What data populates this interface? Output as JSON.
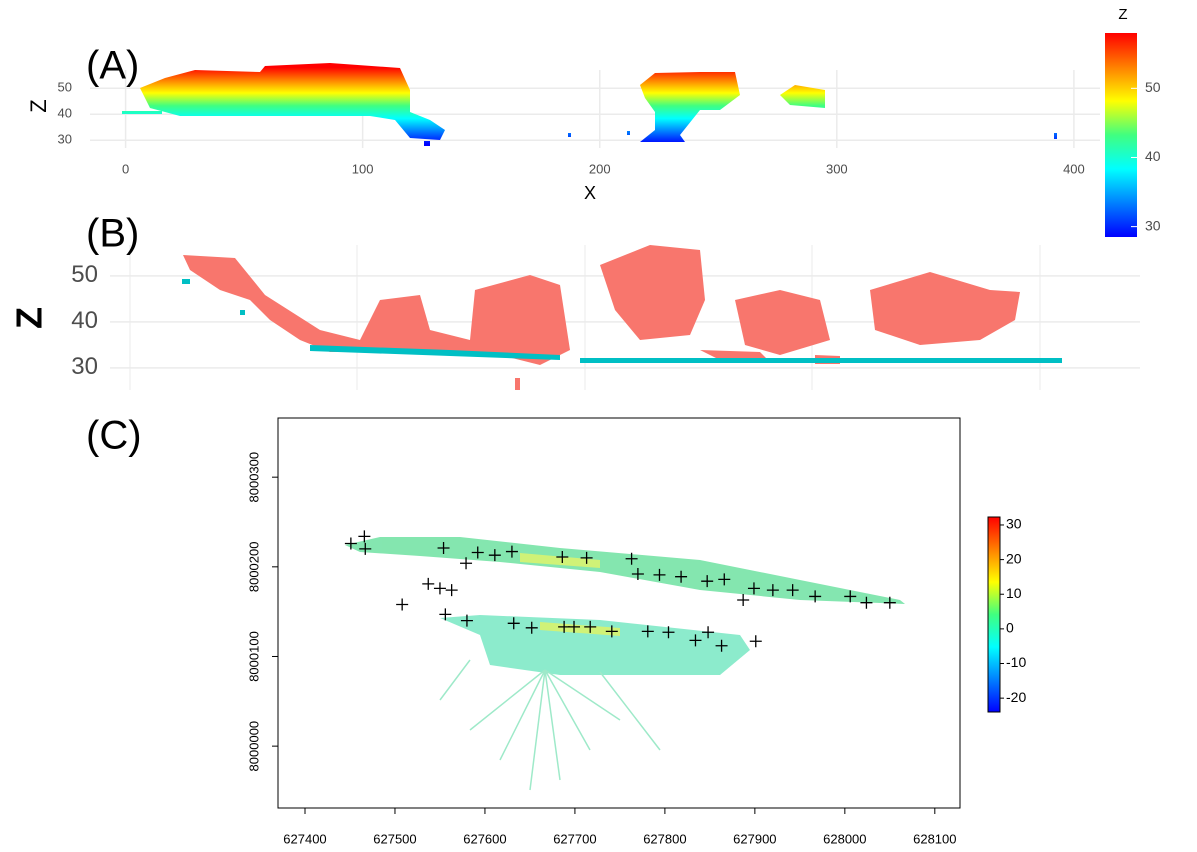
{
  "chart_data": [
    {
      "type": "scatter",
      "panel_label": "(A)",
      "xlabel": "X",
      "ylabel": "Z",
      "xlim": [
        -15,
        411
      ],
      "xticks": [
        0,
        100,
        200,
        300,
        400
      ],
      "ylim": [
        27,
        57
      ],
      "yticks": [
        30,
        40,
        50
      ],
      "grid": true,
      "colorbar": {
        "title": "Z",
        "lim": [
          28.5,
          58
        ],
        "ticks": [
          30,
          40,
          50
        ],
        "colormap": [
          "#0000ff",
          "#0080ff",
          "#00ffff",
          "#40ff80",
          "#ffff00",
          "#ff8000",
          "#ff0000"
        ]
      }
    },
    {
      "type": "scatter",
      "panel_label": "(B)",
      "ylabel": "Z",
      "ylim": [
        25.2,
        56.7
      ],
      "yticks": [
        30,
        40,
        50
      ],
      "grid": true,
      "colors": [
        "#f8766d",
        "#00bfc4"
      ]
    },
    {
      "type": "scatter",
      "panel_label": "(C)",
      "xlim": [
        627370,
        628128
      ],
      "xticks": [
        627400,
        627500,
        627600,
        627700,
        627800,
        627900,
        628000,
        628100
      ],
      "ylim": [
        7999931,
        8000366
      ],
      "yticks": [
        8000000,
        8000100,
        8000200,
        8000300
      ],
      "marker": "+",
      "color": "#000000",
      "x": [
        627451,
        627466,
        627467,
        627554,
        627579,
        627592,
        627611,
        627630,
        627686,
        627713,
        627763,
        627770,
        627794,
        627818,
        627847,
        627866,
        627887,
        627899,
        627920,
        627942,
        627967,
        628006,
        628024,
        628050,
        627508,
        627537,
        627550,
        627563,
        627556,
        627580,
        627632,
        627652,
        627688,
        627699,
        627717,
        627741,
        627781,
        627804,
        627834,
        627848,
        627863,
        627901
      ],
      "values": [
        8000226,
        8000234,
        8000220,
        8000221,
        8000204,
        8000216,
        8000213,
        8000217,
        8000211,
        8000210,
        8000209,
        8000192,
        8000191,
        8000189,
        8000184,
        8000186,
        8000163,
        8000176,
        8000174,
        8000174,
        8000167,
        8000167,
        8000160,
        8000160,
        8000158,
        8000181,
        8000176,
        8000174,
        8000147,
        8000140,
        8000137,
        8000132,
        8000133,
        8000133,
        8000133,
        8000128,
        8000128,
        8000127,
        8000118,
        8000127,
        8000112,
        8000117
      ],
      "colorbar": {
        "lim": [
          -24,
          32.3
        ],
        "ticks": [
          30,
          20,
          10,
          0,
          -10,
          -20
        ],
        "colormap": [
          "#0000ff",
          "#0080ff",
          "#00ffff",
          "#40ff80",
          "#ffff00",
          "#ff8000",
          "#ff0000"
        ]
      }
    }
  ]
}
